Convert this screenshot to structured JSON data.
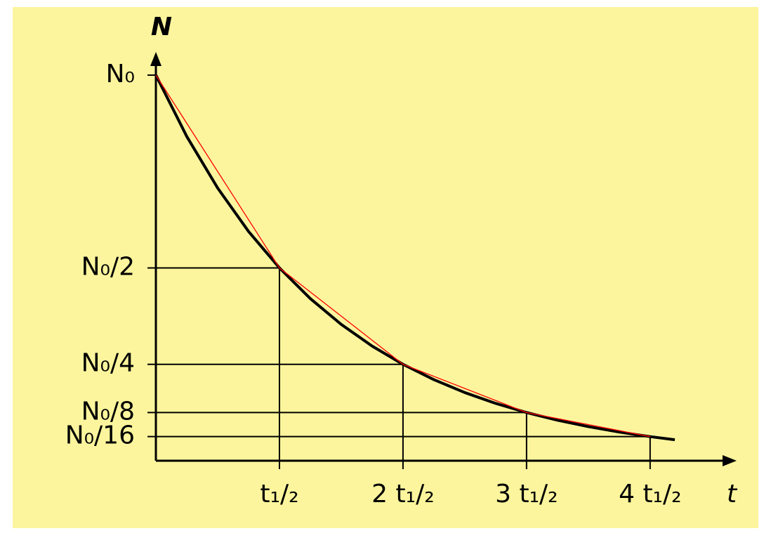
{
  "chart_data": {
    "type": "line",
    "xlabel": "t",
    "ylabel": "N",
    "xlim": [
      0,
      4.7
    ],
    "ylim": [
      0,
      1.06
    ],
    "xticks": [
      {
        "value": 1,
        "label": "t₁/₂"
      },
      {
        "value": 2,
        "label": "2 t₁/₂"
      },
      {
        "value": 3,
        "label": "3 t₁/₂"
      },
      {
        "value": 4,
        "label": "4 t₁/₂"
      }
    ],
    "yticks": [
      {
        "value": 1,
        "label": "N₀"
      },
      {
        "value": 0.5,
        "label": "N₀/2"
      },
      {
        "value": 0.25,
        "label": "N₀/4"
      },
      {
        "value": 0.125,
        "label": "N₀/8"
      },
      {
        "value": 0.0625,
        "label": "N₀/16"
      }
    ],
    "series": [
      {
        "color": "#000000",
        "x": [
          0,
          0.25,
          0.5,
          0.75,
          1,
          1.25,
          1.5,
          1.75,
          2,
          2.25,
          2.5,
          2.75,
          3,
          3.25,
          3.5,
          3.75,
          4,
          4.2
        ],
        "values": [
          1,
          0.8409,
          0.7071,
          0.5946,
          0.5,
          0.4204,
          0.3536,
          0.2973,
          0.25,
          0.2102,
          0.1768,
          0.1487,
          0.125,
          0.1051,
          0.0884,
          0.0743,
          0.0625,
          0.0544
        ]
      },
      {
        "color": "#ff0000",
        "x": [
          0,
          1,
          2,
          3,
          4
        ],
        "values": [
          1,
          0.5,
          0.25,
          0.125,
          0.0625
        ]
      }
    ]
  }
}
